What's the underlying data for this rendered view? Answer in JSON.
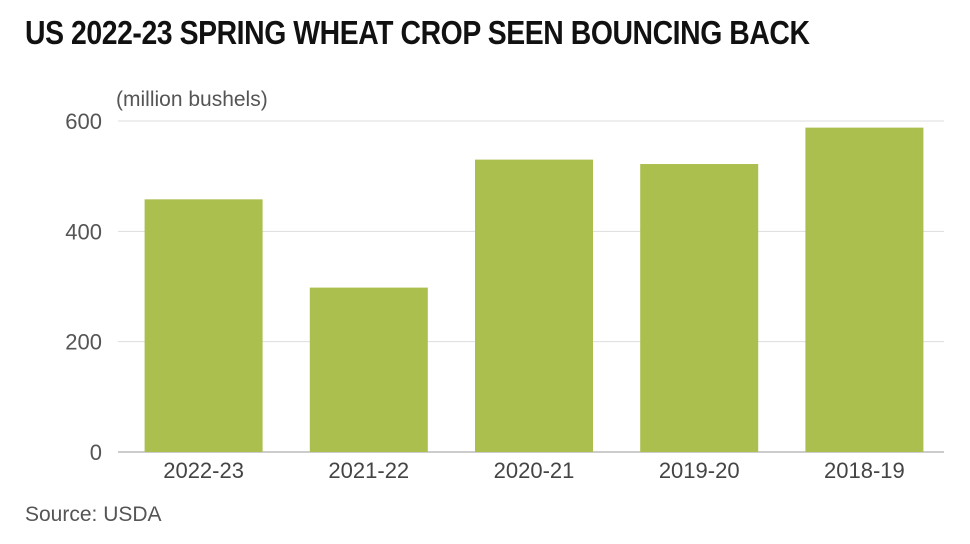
{
  "chart_data": {
    "type": "bar",
    "title": "US 2022-23 SPRING WHEAT CROP SEEN BOUNCING BACK",
    "unit_label": "(million bushels)",
    "source": "Source: USDA",
    "categories": [
      "2022-23",
      "2021-22",
      "2020-21",
      "2019-20",
      "2018-19"
    ],
    "values": [
      458,
      298,
      530,
      522,
      588
    ],
    "ylim": [
      0,
      600
    ],
    "yticks": [
      0,
      200,
      400,
      600
    ],
    "grid": true,
    "bar_color": "#abbf4e"
  }
}
